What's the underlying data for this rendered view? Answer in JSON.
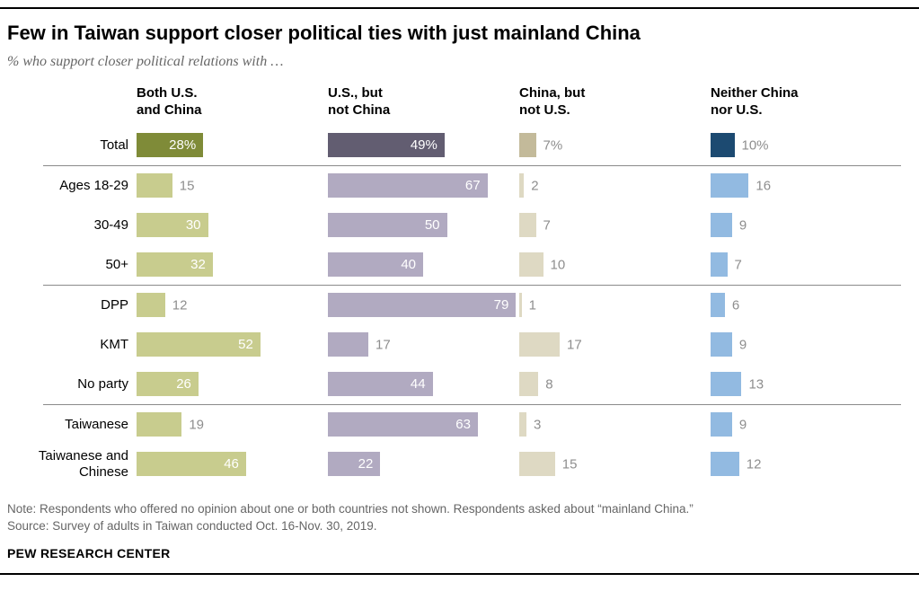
{
  "header": {
    "title": "Few in Taiwan support closer political ties with just mainland China",
    "subtitle": "% who support closer political relations with …"
  },
  "chart_data": {
    "type": "bar",
    "orientation": "horizontal",
    "xlim": [
      0,
      80
    ],
    "categories": [
      "Total",
      "Ages 18-29",
      "30-49",
      "50+",
      "DPP",
      "KMT",
      "No party",
      "Taiwanese",
      "Taiwanese and Chinese"
    ],
    "group_breaks": [
      1,
      4,
      7
    ],
    "total_row_index": 0,
    "total_value_suffix": "%",
    "series": [
      {
        "key": "both-us-and-china",
        "name": "Both U.S. and China",
        "header_lines": [
          "Both U.S.",
          "and China"
        ],
        "color": "#c8cc8e",
        "color_total": "#7f8b38",
        "values": [
          28,
          15,
          30,
          32,
          12,
          52,
          26,
          19,
          46
        ]
      },
      {
        "key": "us-but-not-china",
        "name": "U.S., but not China",
        "header_lines": [
          "U.S., but",
          "not China"
        ],
        "color": "#b1aac1",
        "color_total": "#625d71",
        "values": [
          49,
          67,
          50,
          40,
          79,
          17,
          44,
          63,
          22
        ]
      },
      {
        "key": "china-but-not-us",
        "name": "China, but not U.S.",
        "header_lines": [
          "China, but",
          "not U.S."
        ],
        "color": "#ded9c3",
        "color_total": "#c3ba9a",
        "values": [
          7,
          2,
          7,
          10,
          1,
          17,
          8,
          3,
          15
        ]
      },
      {
        "key": "neither-china-nor-us",
        "name": "Neither China nor U.S.",
        "header_lines": [
          "Neither China",
          "nor U.S."
        ],
        "color": "#92bae1",
        "color_total": "#1c4a71",
        "values": [
          10,
          16,
          9,
          7,
          6,
          9,
          13,
          9,
          12
        ]
      }
    ],
    "value_label_colors": {
      "inside": "#ffffff",
      "outside": "#8e8e8e"
    }
  },
  "footer": {
    "note": "Note: Respondents who offered no opinion about one or both countries not shown. Respondents asked about “mainland China.”",
    "source": "Source: Survey of adults in Taiwan conducted Oct. 16-Nov. 30, 2019.",
    "brand": "PEW RESEARCH CENTER"
  }
}
